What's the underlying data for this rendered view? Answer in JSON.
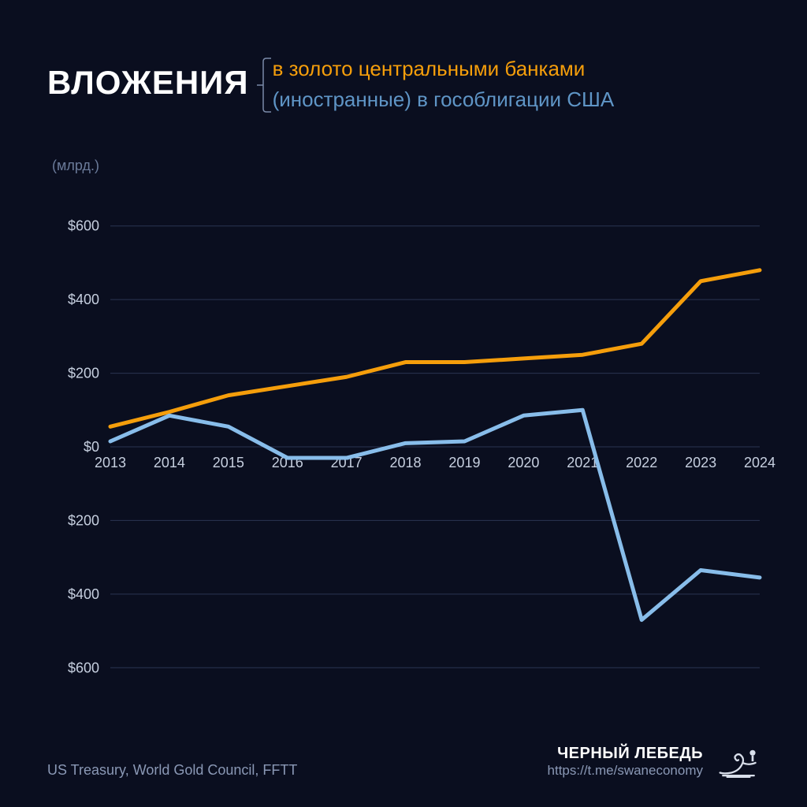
{
  "background_color": "#0a0e1f",
  "header": {
    "title": "ВЛОЖЕНИЯ",
    "legend": [
      {
        "text": "в золото центральными банками",
        "color": "#f59e0b"
      },
      {
        "text": "(иностранные) в гособлигации США",
        "color": "#5f95c6"
      }
    ],
    "bracket_color": "#7a8aa8"
  },
  "unit_label": "(млрд.)",
  "chart": {
    "type": "line",
    "grid_color": "#2a3452",
    "axis_label_color": "#c6cfdf",
    "axis_label_fontsize": 18,
    "x_categories": [
      "2013",
      "2014",
      "2015",
      "2016",
      "2017",
      "2018",
      "2019",
      "2020",
      "2021",
      "2022",
      "2023",
      "2024"
    ],
    "x_baseline_value": 0,
    "y_ticks": [
      600,
      400,
      200,
      0,
      -200,
      -400,
      -600
    ],
    "y_tick_labels": [
      "$600",
      "$400",
      "$200",
      "$0",
      "$200",
      "$400",
      "$600"
    ],
    "ylim": [
      -700,
      700
    ],
    "line_width": 5,
    "series": [
      {
        "name": "gold",
        "color": "#f59e0b",
        "values": [
          55,
          95,
          140,
          165,
          190,
          230,
          230,
          240,
          250,
          280,
          450,
          480
        ]
      },
      {
        "name": "treasuries",
        "color": "#88bdea",
        "values": [
          15,
          85,
          55,
          -30,
          -30,
          10,
          15,
          85,
          100,
          -470,
          -335,
          -355
        ]
      }
    ]
  },
  "footer": {
    "source": "US Treasury, World Gold Council, FFTT",
    "brand_name": "ЧЕРНЫЙ ЛЕБЕДЬ",
    "brand_link": "https://t.me/swaneconomy"
  }
}
